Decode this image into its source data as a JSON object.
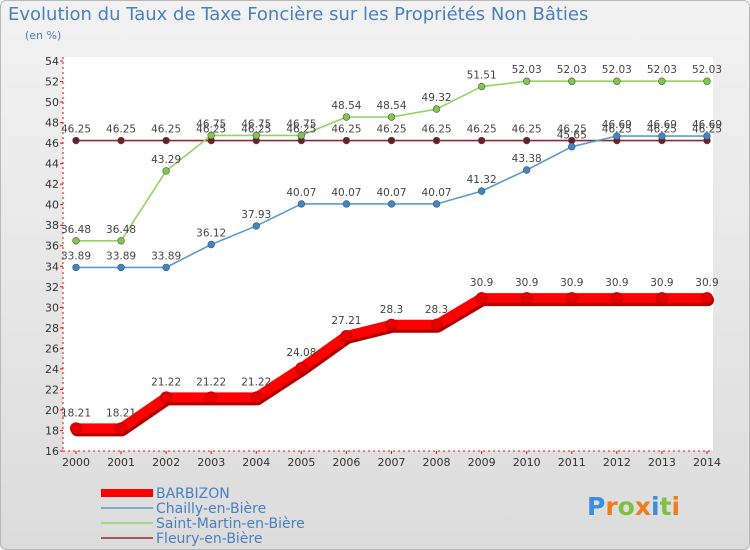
{
  "chart_data": {
    "type": "line",
    "title": "Evolution du Taux de Taxe Foncière sur les Propriétés Non Bâties",
    "unit_label": "(en %)",
    "xlabel": "",
    "ylabel": "",
    "x": [
      "2000",
      "2001",
      "2002",
      "2003",
      "2004",
      "2005",
      "2006",
      "2007",
      "2008",
      "2009",
      "2010",
      "2011",
      "2012",
      "2013",
      "2014"
    ],
    "ylim": [
      16,
      54
    ],
    "yticks": [
      16,
      18,
      20,
      22,
      24,
      26,
      28,
      30,
      32,
      34,
      36,
      38,
      40,
      42,
      44,
      46,
      48,
      50,
      52,
      54
    ],
    "grid": false,
    "legend_position": "bottom-left",
    "series": [
      {
        "name": "Fleury-en-Bière",
        "color": "#8b2b3a",
        "point_color": "#6b1f25",
        "values": [
          46.25,
          46.25,
          46.25,
          46.25,
          46.25,
          46.25,
          46.25,
          46.25,
          46.25,
          46.25,
          46.25,
          46.25,
          46.25,
          46.25,
          46.25
        ],
        "labels": [
          "46.25",
          "46.25",
          "46.25",
          "46.25",
          "46.25",
          "46.25",
          "46.25",
          "46.25",
          "46.25",
          "46.25",
          "46.25",
          "46.25",
          "46.25",
          "46.25",
          "46.25"
        ]
      },
      {
        "name": "Chailly-en-Bière",
        "color": "#5b9bd0",
        "point_color": "#3d86c8",
        "values": [
          33.89,
          33.89,
          33.89,
          36.12,
          37.93,
          40.07,
          40.07,
          40.07,
          40.07,
          41.32,
          43.38,
          45.65,
          46.69,
          46.69,
          46.69
        ],
        "labels": [
          "33.89",
          "33.89",
          "33.89",
          "36.12",
          "37.93",
          "40.07",
          "40.07",
          "40.07",
          "40.07",
          "41.32",
          "43.38",
          "45.65",
          "46.69",
          "46.69",
          "46.69"
        ]
      },
      {
        "name": "Saint-Martin-en-Bière",
        "color": "#92d563",
        "point_color": "#7ec94a",
        "values": [
          36.48,
          36.48,
          43.29,
          46.75,
          46.75,
          46.75,
          48.54,
          48.54,
          49.32,
          51.51,
          52.03,
          52.03,
          52.03,
          52.03,
          52.03
        ],
        "labels": [
          "36.48",
          "36.48",
          "43.29",
          "46.75",
          "46.75",
          "46.75",
          "48.54",
          "48.54",
          "49.32",
          "51.51",
          "52.03",
          "52.03",
          "52.03",
          "52.03",
          "52.03"
        ]
      },
      {
        "name": "BARBIZON",
        "color": "#ff0000",
        "point_color": "#e60000",
        "values": [
          18.21,
          18.21,
          21.22,
          21.22,
          21.22,
          24.08,
          27.21,
          28.3,
          28.3,
          30.9,
          30.9,
          30.9,
          30.9,
          30.9,
          30.9
        ],
        "labels": [
          "18.21",
          "18.21",
          "21.22",
          "21.22",
          "21.22",
          "24.08",
          "27.21",
          "28.3",
          "28.3",
          "30.9",
          "30.9",
          "30.9",
          "30.9",
          "30.9",
          "30.9"
        ]
      }
    ],
    "legend": [
      {
        "name": "BARBIZON",
        "color": "#ff0000",
        "style": "thick"
      },
      {
        "name": "Chailly-en-Bière",
        "color": "#5b9bd0",
        "style": "thin"
      },
      {
        "name": "Saint-Martin-en-Bière",
        "color": "#92d563",
        "style": "thin"
      },
      {
        "name": "Fleury-en-Bière",
        "color": "#8b2b3a",
        "style": "thin"
      }
    ]
  },
  "logo": {
    "letters": [
      "P",
      "r",
      "o",
      "x",
      "i",
      "t",
      "i"
    ],
    "colors": [
      "#3b8fd9",
      "#f07c1e",
      "#7cc242",
      "#f07c1e",
      "#3b8fd9",
      "#7cc242",
      "#f07c1e"
    ]
  }
}
